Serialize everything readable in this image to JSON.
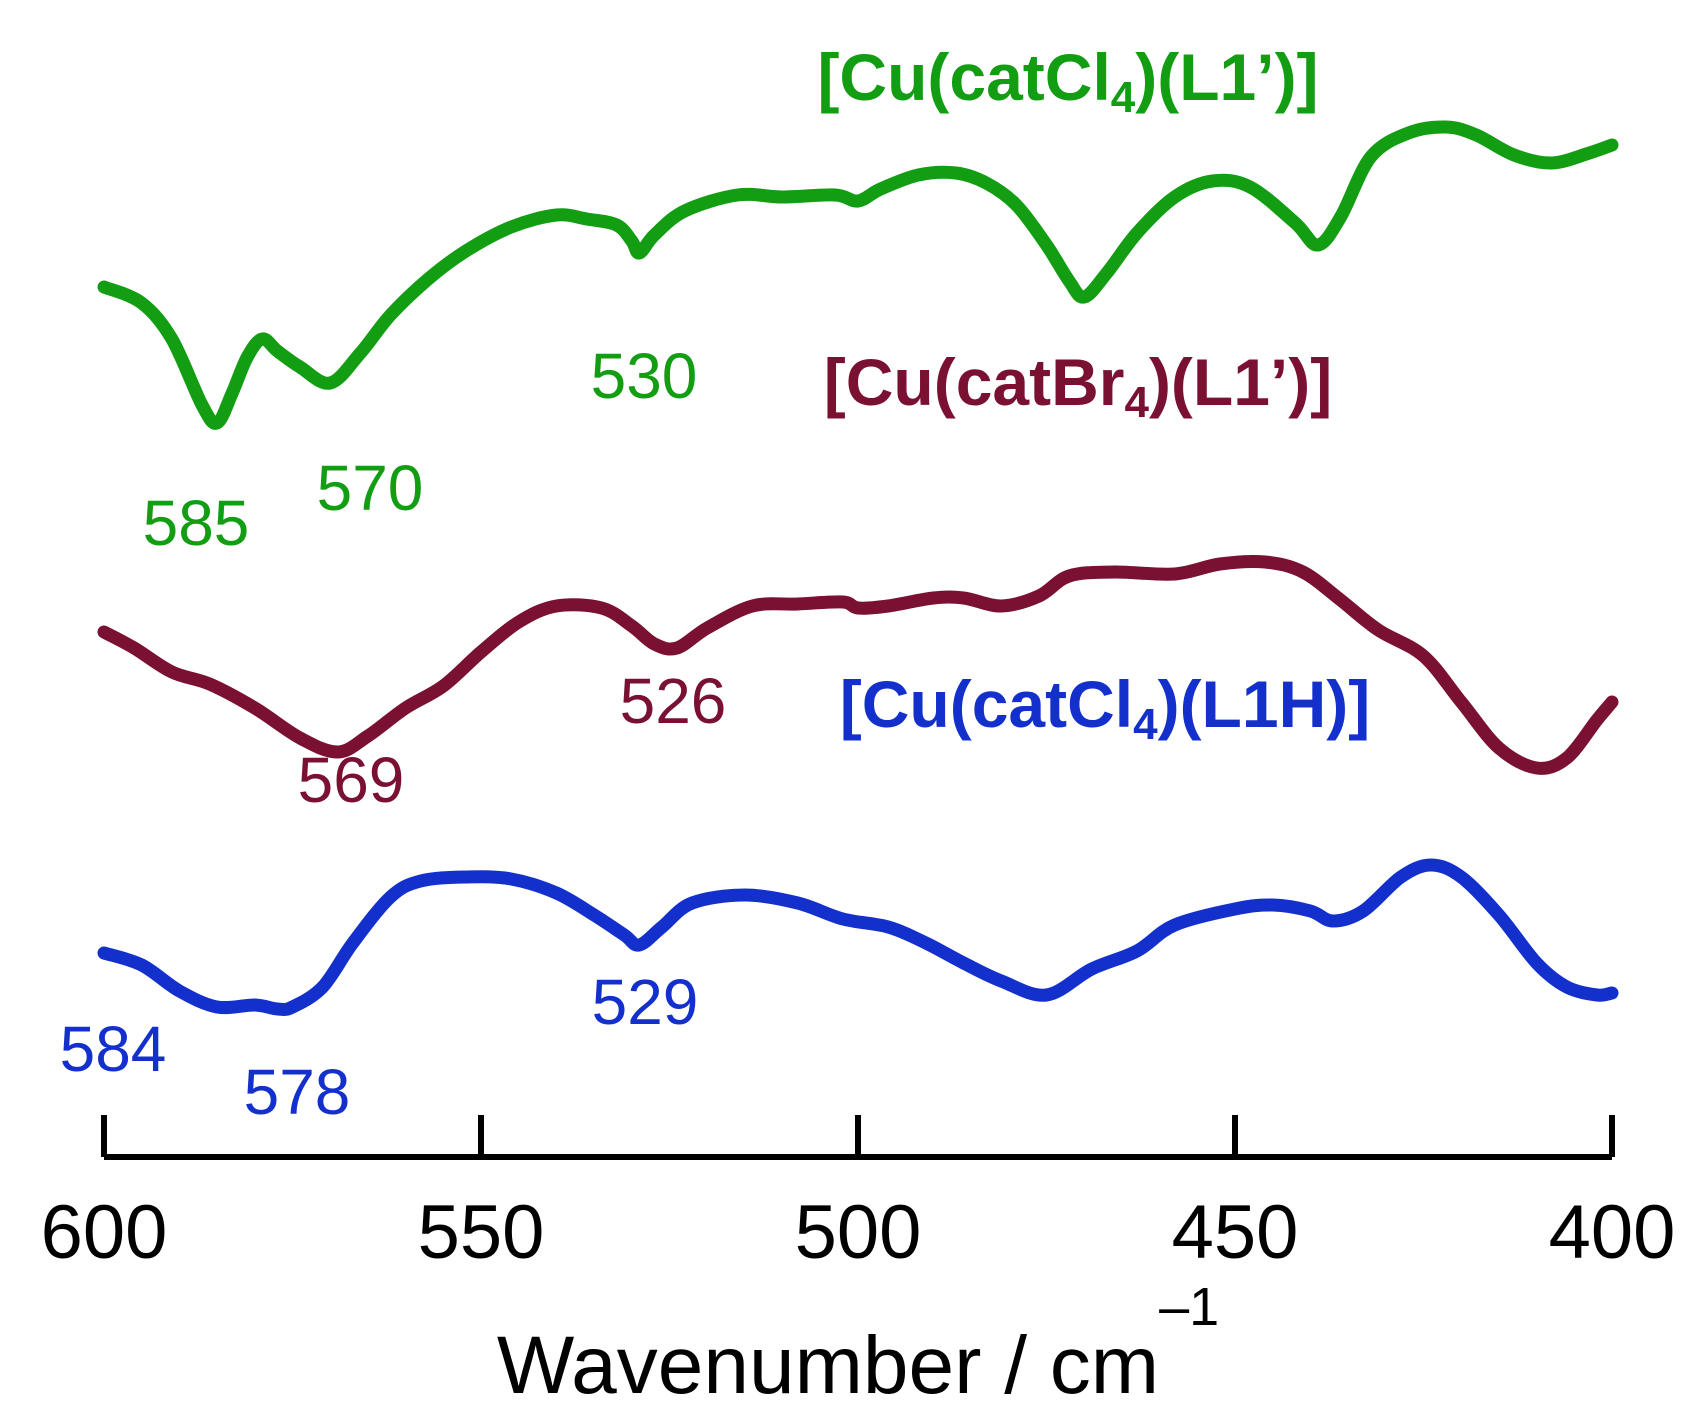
{
  "chart_data": {
    "type": "line",
    "title": "",
    "xlabel": "Wavenumber / cm",
    "xlabel_superscript": "–1",
    "ylabel": "",
    "xlim": [
      600,
      400
    ],
    "x_ticks": [
      "600",
      "550",
      "500",
      "450",
      "400"
    ],
    "grid": false,
    "series": [
      {
        "name": "[Cu(catCl4)(L1’)]",
        "name_parts": [
          "[Cu(catCl",
          "4",
          ")(L1’)]"
        ],
        "color": "#129d12",
        "offset": 0,
        "points": [
          [
            600,
            22
          ],
          [
            595,
            38
          ],
          [
            591,
            74
          ],
          [
            587,
            140
          ],
          [
            585,
            158
          ],
          [
            583,
            128
          ],
          [
            581,
            92
          ],
          [
            579,
            74
          ],
          [
            577,
            86
          ],
          [
            574,
            102
          ],
          [
            570,
            118
          ],
          [
            566,
            88
          ],
          [
            562,
            50
          ],
          [
            557,
            14
          ],
          [
            552,
            -14
          ],
          [
            546,
            -38
          ],
          [
            540,
            -50
          ],
          [
            536,
            -46
          ],
          [
            532,
            -40
          ],
          [
            530,
            -24
          ],
          [
            529,
            -12
          ],
          [
            527,
            -30
          ],
          [
            523,
            -54
          ],
          [
            516,
            -70
          ],
          [
            510,
            -68
          ],
          [
            503,
            -70
          ],
          [
            500,
            -64
          ],
          [
            497,
            -76
          ],
          [
            492,
            -90
          ],
          [
            487,
            -92
          ],
          [
            483,
            -82
          ],
          [
            479,
            -60
          ],
          [
            475,
            -20
          ],
          [
            472,
            16
          ],
          [
            470,
            32
          ],
          [
            467,
            8
          ],
          [
            463,
            -32
          ],
          [
            458,
            -68
          ],
          [
            453,
            -84
          ],
          [
            448,
            -78
          ],
          [
            442,
            -42
          ],
          [
            439,
            -20
          ],
          [
            436,
            -48
          ],
          [
            432,
            -108
          ],
          [
            427,
            -132
          ],
          [
            422,
            -138
          ],
          [
            418,
            -130
          ],
          [
            413,
            -110
          ],
          [
            408,
            -102
          ],
          [
            403,
            -112
          ],
          [
            400,
            -120
          ]
        ],
        "peak_labels": [
          {
            "text": "585",
            "x": 585
          },
          {
            "text": "570",
            "x": 570
          },
          {
            "text": "530",
            "x": 530
          }
        ]
      },
      {
        "name": "[Cu(catBr4)(L1’)]",
        "name_parts": [
          "[Cu(catBr",
          "4",
          ")(L1’)]"
        ],
        "color": "#7a1032",
        "offset": 0,
        "points": [
          [
            600,
            42
          ],
          [
            596,
            58
          ],
          [
            591,
            82
          ],
          [
            586,
            94
          ],
          [
            580,
            118
          ],
          [
            574,
            148
          ],
          [
            569,
            162
          ],
          [
            565,
            146
          ],
          [
            560,
            118
          ],
          [
            555,
            96
          ],
          [
            550,
            62
          ],
          [
            545,
            32
          ],
          [
            540,
            16
          ],
          [
            534,
            18
          ],
          [
            530,
            36
          ],
          [
            527,
            54
          ],
          [
            524,
            58
          ],
          [
            520,
            38
          ],
          [
            514,
            16
          ],
          [
            508,
            14
          ],
          [
            502,
            12
          ],
          [
            500,
            18
          ],
          [
            496,
            16
          ],
          [
            490,
            8
          ],
          [
            486,
            8
          ],
          [
            481,
            16
          ],
          [
            476,
            6
          ],
          [
            472,
            -14
          ],
          [
            466,
            -18
          ],
          [
            458,
            -16
          ],
          [
            452,
            -26
          ],
          [
            446,
            -28
          ],
          [
            441,
            -18
          ],
          [
            436,
            10
          ],
          [
            431,
            40
          ],
          [
            425,
            66
          ],
          [
            420,
            112
          ],
          [
            415,
            158
          ],
          [
            410,
            178
          ],
          [
            406,
            168
          ],
          [
            402,
            130
          ],
          [
            400,
            112
          ]
        ],
        "peak_labels": [
          {
            "text": "569",
            "x": 569
          },
          {
            "text": "526",
            "x": 526
          }
        ]
      },
      {
        "name": "[Cu(catCl4)(L1H)]",
        "name_parts": [
          "[Cu(catCl",
          "4",
          ")(L1H)]"
        ],
        "color": "#1430cc",
        "offset": 0,
        "points": [
          [
            600,
            48
          ],
          [
            595,
            60
          ],
          [
            590,
            86
          ],
          [
            585,
            102
          ],
          [
            580,
            100
          ],
          [
            577,
            104
          ],
          [
            575,
            102
          ],
          [
            571,
            82
          ],
          [
            567,
            38
          ],
          [
            562,
            -8
          ],
          [
            558,
            -24
          ],
          [
            552,
            -28
          ],
          [
            546,
            -26
          ],
          [
            540,
            -12
          ],
          [
            535,
            10
          ],
          [
            531,
            30
          ],
          [
            529,
            40
          ],
          [
            526,
            22
          ],
          [
            522,
            -2
          ],
          [
            515,
            -10
          ],
          [
            508,
            -2
          ],
          [
            502,
            14
          ],
          [
            496,
            22
          ],
          [
            491,
            38
          ],
          [
            486,
            58
          ],
          [
            481,
            76
          ],
          [
            475,
            90
          ],
          [
            469,
            64
          ],
          [
            463,
            46
          ],
          [
            458,
            20
          ],
          [
            450,
            4
          ],
          [
            445,
            0
          ],
          [
            440,
            6
          ],
          [
            437,
            16
          ],
          [
            433,
            6
          ],
          [
            428,
            -28
          ],
          [
            424,
            -40
          ],
          [
            420,
            -28
          ],
          [
            415,
            10
          ],
          [
            410,
            58
          ],
          [
            406,
            82
          ],
          [
            402,
            90
          ],
          [
            400,
            88
          ]
        ],
        "peak_labels": [
          {
            "text": "584",
            "x": 584
          },
          {
            "text": "578",
            "x": 578
          },
          {
            "text": "529",
            "x": 529
          }
        ]
      }
    ]
  }
}
